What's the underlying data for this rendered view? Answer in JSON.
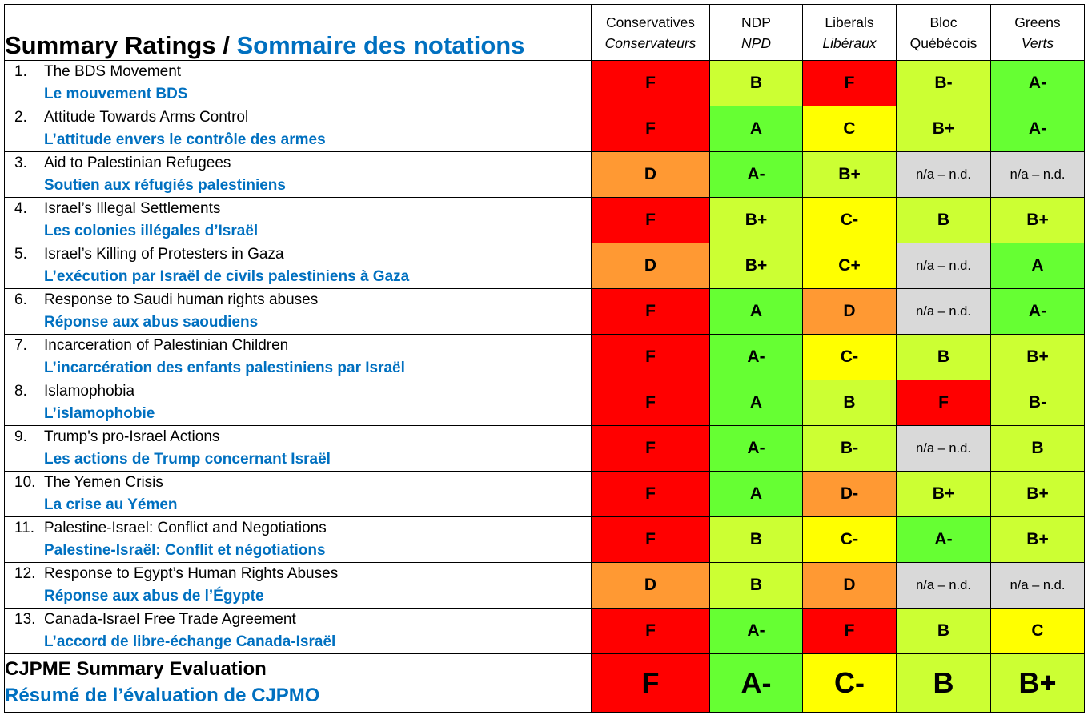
{
  "title": {
    "en": "Summary Ratings",
    "separator": "/",
    "fr": "Sommaire des notations"
  },
  "parties": [
    {
      "en": "Conservatives",
      "fr": "Conservateurs"
    },
    {
      "en": "NDP",
      "fr": "NPD"
    },
    {
      "en": "Liberals",
      "fr": "Libéraux"
    },
    {
      "en": "Bloc",
      "fr": "Québécois"
    },
    {
      "en": "Greens",
      "fr": "Verts"
    }
  ],
  "colors": {
    "F": "#ff0000",
    "D": "#ff9933",
    "D-": "#ff9933",
    "C": "#ffff00",
    "C-": "#ffff00",
    "C+": "#ffff00",
    "B": "#ccff33",
    "B-": "#ccff33",
    "B+": "#ccff33",
    "A": "#66ff33",
    "A-": "#66ff33",
    "n/a – n.d.": "#d9d9d9"
  },
  "rows": [
    {
      "num": "1.",
      "en": "The BDS Movement",
      "fr": "Le mouvement BDS",
      "grades": [
        "F",
        "B",
        "F",
        "B-",
        "A-"
      ]
    },
    {
      "num": "2.",
      "en": "Attitude Towards Arms Control",
      "fr": "L’attitude envers le contrôle des armes",
      "grades": [
        "F",
        "A",
        "C",
        "B+",
        "A-"
      ]
    },
    {
      "num": "3.",
      "en": "Aid to Palestinian Refugees",
      "fr": "Soutien aux réfugiés palestiniens",
      "grades": [
        "D",
        "A-",
        "B+",
        "n/a – n.d.",
        "n/a – n.d."
      ]
    },
    {
      "num": "4.",
      "en": "Israel’s Illegal Settlements",
      "fr": "Les colonies illégales d’Israël",
      "grades": [
        "F",
        "B+",
        "C-",
        "B",
        "B+"
      ]
    },
    {
      "num": "5.",
      "en": "Israel’s Killing of Protesters in Gaza",
      "fr": "L’exécution par Israël de civils palestiniens à Gaza",
      "grades": [
        "D",
        "B+",
        "C+",
        "n/a – n.d.",
        "A"
      ]
    },
    {
      "num": "6.",
      "en": "Response to Saudi human rights abuses",
      "fr": "Réponse aux abus saoudiens",
      "grades": [
        "F",
        "A",
        "D",
        "n/a – n.d.",
        "A-"
      ]
    },
    {
      "num": "7.",
      "en": "Incarceration of Palestinian Children",
      "fr": "L’incarcération des enfants palestiniens par Israël",
      "grades": [
        "F",
        "A-",
        "C-",
        "B",
        "B+"
      ]
    },
    {
      "num": "8.",
      "en": "Islamophobia",
      "fr": "L’islamophobie",
      "grades": [
        "F",
        "A",
        "B",
        "F",
        "B-"
      ]
    },
    {
      "num": "9.",
      "en": "Trump's pro-Israel Actions",
      "fr": "Les actions de Trump concernant Israël",
      "grades": [
        "F",
        "A-",
        "B-",
        "n/a – n.d.",
        "B"
      ]
    },
    {
      "num": "10.",
      "en": "The Yemen Crisis",
      "fr": "La crise au Yémen",
      "grades": [
        "F",
        "A",
        "D-",
        "B+",
        "B+"
      ]
    },
    {
      "num": "11.",
      "en": "Palestine-Israel: Conflict and Negotiations",
      "fr": "Palestine-Israël: Conflit et négotiations",
      "grades": [
        "F",
        "B",
        "C-",
        "A-",
        "B+"
      ]
    },
    {
      "num": "12.",
      "en": "Response to Egypt’s Human Rights Abuses",
      "fr": "Réponse aux abus de l’Égypte",
      "grades": [
        "D",
        "B",
        "D",
        "n/a – n.d.",
        "n/a – n.d."
      ]
    },
    {
      "num": "13.",
      "en": "Canada-Israel Free Trade Agreement",
      "fr": "L’accord de libre-échange Canada-Israël",
      "grades": [
        "F",
        "A-",
        "F",
        "B",
        "C"
      ]
    }
  ],
  "summary": {
    "en": "CJPME Summary Evaluation",
    "fr": "Résumé de l’évaluation de CJPMO",
    "grades": [
      "F",
      "A-",
      "C-",
      "B",
      "B+"
    ]
  }
}
